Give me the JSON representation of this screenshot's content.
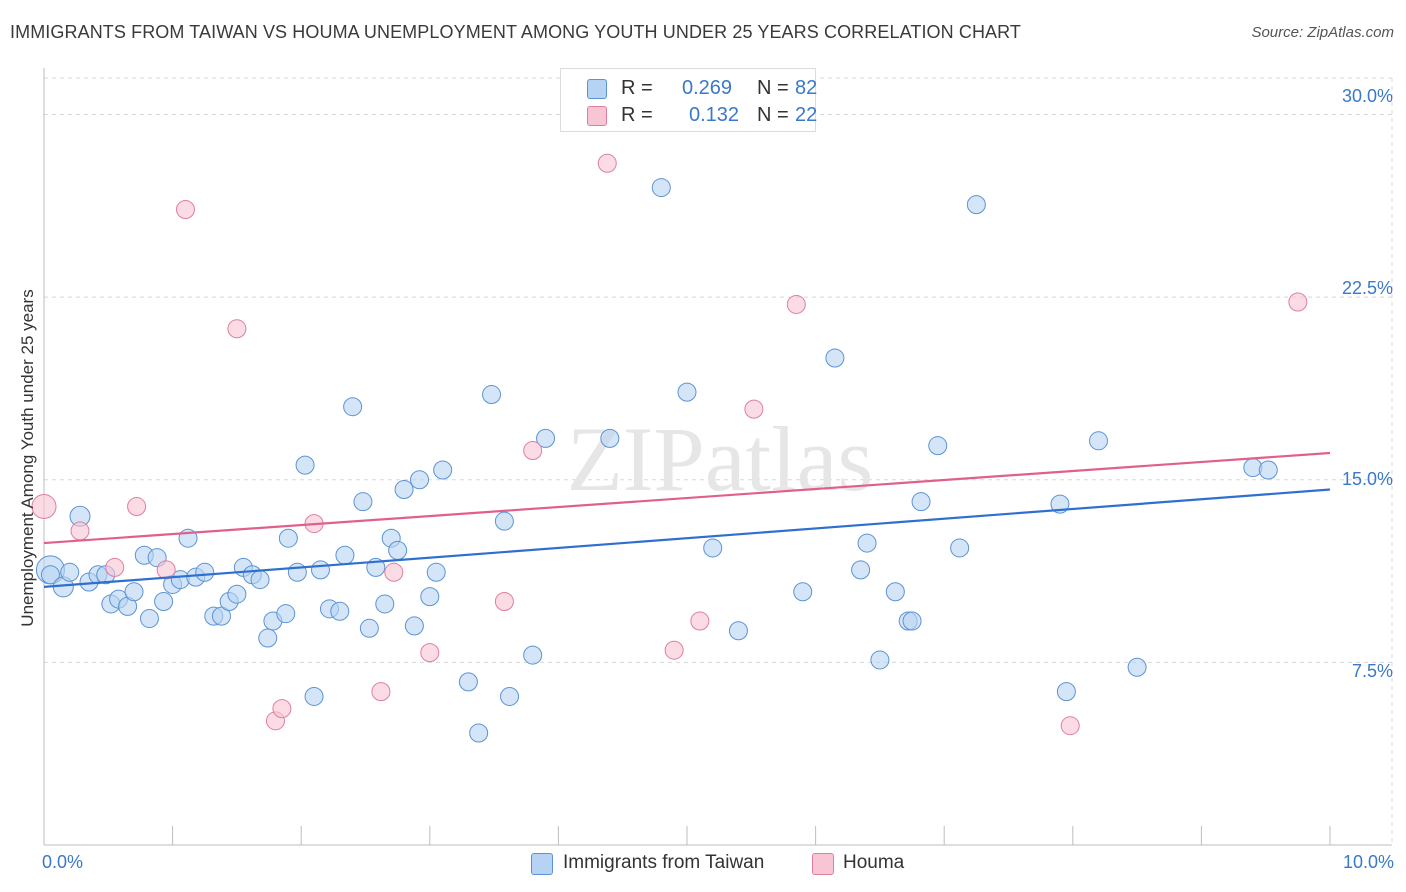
{
  "title": "IMMIGRANTS FROM TAIWAN VS HOUMA UNEMPLOYMENT AMONG YOUTH UNDER 25 YEARS CORRELATION CHART",
  "source": "Source: ZipAtlas.com",
  "watermark": "ZIPatlas",
  "colors": {
    "blue_fill": "#b7d3f3",
    "blue_stroke": "#5b93d6",
    "blue_line": "#2f6fcf",
    "pink_fill": "#f8c5d4",
    "pink_stroke": "#e07ea0",
    "pink_line": "#e0608c",
    "grid": "#d8d8d8",
    "tick_text": "#3a78c9"
  },
  "legend": {
    "row1": {
      "r_label": "R =",
      "r_value": "0.269",
      "n_label": "N =",
      "n_value": "82"
    },
    "row2": {
      "r_label": "R =",
      "r_value": "0.132",
      "n_label": "N =",
      "n_value": "22"
    }
  },
  "bottom_legend": {
    "series1": "Immigrants from Taiwan",
    "series2": "Houma"
  },
  "chart_data": {
    "type": "scatter",
    "title": "IMMIGRANTS FROM TAIWAN VS HOUMA UNEMPLOYMENT AMONG YOUTH UNDER 25 YEARS CORRELATION CHART",
    "xlabel": "",
    "ylabel": "Unemployment Among Youth under 25 years",
    "xlim": [
      0,
      10
    ],
    "ylim": [
      0,
      31.5
    ],
    "x_tick_labels": [
      "0.0%",
      "10.0%"
    ],
    "y_ticks": [
      {
        "value": 30,
        "label": "30.0%"
      },
      {
        "value": 22.5,
        "label": "22.5%"
      },
      {
        "value": 15,
        "label": "15.0%"
      },
      {
        "value": 7.5,
        "label": "7.5%"
      }
    ],
    "series": [
      {
        "name": "Immigrants from Taiwan",
        "color": "#5b93d6",
        "R": 0.269,
        "N": 82,
        "trend": {
          "x": [
            0,
            10
          ],
          "y": [
            10.6,
            14.6
          ]
        },
        "points": [
          [
            0.05,
            11.3,
            14
          ],
          [
            0.05,
            11.1,
            9
          ],
          [
            0.15,
            10.6,
            10
          ],
          [
            0.2,
            11.2,
            9
          ],
          [
            0.28,
            13.5,
            10
          ],
          [
            0.35,
            10.8,
            9
          ],
          [
            0.42,
            11.1,
            9
          ],
          [
            0.48,
            11.1,
            9
          ],
          [
            0.52,
            9.9,
            9
          ],
          [
            0.58,
            10.1,
            9
          ],
          [
            0.65,
            9.8,
            9
          ],
          [
            0.7,
            10.4,
            9
          ],
          [
            0.78,
            11.9,
            9
          ],
          [
            0.82,
            9.3,
            9
          ],
          [
            0.88,
            11.8,
            9
          ],
          [
            0.93,
            10.0,
            9
          ],
          [
            1.0,
            10.7,
            9
          ],
          [
            1.06,
            10.9,
            9
          ],
          [
            1.12,
            12.6,
            9
          ],
          [
            1.18,
            11.0,
            9
          ],
          [
            1.25,
            11.2,
            9
          ],
          [
            1.32,
            9.4,
            9
          ],
          [
            1.38,
            9.4,
            9
          ],
          [
            1.44,
            10.0,
            9
          ],
          [
            1.5,
            10.3,
            9
          ],
          [
            1.55,
            11.4,
            9
          ],
          [
            1.62,
            11.1,
            9
          ],
          [
            1.68,
            10.9,
            9
          ],
          [
            1.74,
            8.5,
            9
          ],
          [
            1.78,
            9.2,
            9
          ],
          [
            1.88,
            9.5,
            9
          ],
          [
            1.9,
            12.6,
            9
          ],
          [
            1.97,
            11.2,
            9
          ],
          [
            2.03,
            15.6,
            9
          ],
          [
            2.1,
            6.1,
            9
          ],
          [
            2.15,
            11.3,
            9
          ],
          [
            2.22,
            9.7,
            9
          ],
          [
            2.3,
            9.6,
            9
          ],
          [
            2.34,
            11.9,
            9
          ],
          [
            2.4,
            18.0,
            9
          ],
          [
            2.48,
            14.1,
            9
          ],
          [
            2.53,
            8.9,
            9
          ],
          [
            2.58,
            11.4,
            9
          ],
          [
            2.65,
            9.9,
            9
          ],
          [
            2.7,
            12.6,
            9
          ],
          [
            2.75,
            12.1,
            9
          ],
          [
            2.8,
            14.6,
            9
          ],
          [
            2.88,
            9.0,
            9
          ],
          [
            2.92,
            15.0,
            9
          ],
          [
            3.0,
            10.2,
            9
          ],
          [
            3.05,
            11.2,
            9
          ],
          [
            3.1,
            15.4,
            9
          ],
          [
            3.3,
            6.7,
            9
          ],
          [
            3.38,
            4.6,
            9
          ],
          [
            3.48,
            18.5,
            9
          ],
          [
            3.58,
            13.3,
            9
          ],
          [
            3.62,
            6.1,
            9
          ],
          [
            3.8,
            7.8,
            9
          ],
          [
            3.9,
            16.7,
            9
          ],
          [
            4.4,
            16.7,
            9
          ],
          [
            4.8,
            27.0,
            9
          ],
          [
            5.0,
            18.6,
            9
          ],
          [
            5.2,
            12.2,
            9
          ],
          [
            5.4,
            8.8,
            9
          ],
          [
            5.9,
            10.4,
            9
          ],
          [
            6.15,
            20.0,
            9
          ],
          [
            6.35,
            11.3,
            9
          ],
          [
            6.4,
            12.4,
            9
          ],
          [
            6.5,
            7.6,
            9
          ],
          [
            6.62,
            10.4,
            9
          ],
          [
            6.72,
            9.2,
            9
          ],
          [
            6.75,
            9.2,
            9
          ],
          [
            6.82,
            14.1,
            9
          ],
          [
            6.95,
            16.4,
            9
          ],
          [
            7.12,
            12.2,
            9
          ],
          [
            7.25,
            26.3,
            9
          ],
          [
            7.9,
            14.0,
            9
          ],
          [
            7.95,
            6.3,
            9
          ],
          [
            8.2,
            16.6,
            9
          ],
          [
            8.5,
            7.3,
            9
          ],
          [
            9.4,
            15.5,
            9
          ],
          [
            9.52,
            15.4,
            9
          ]
        ]
      },
      {
        "name": "Houma",
        "color": "#e07ea0",
        "R": 0.132,
        "N": 22,
        "trend": {
          "x": [
            0,
            10
          ],
          "y": [
            12.4,
            16.1
          ]
        },
        "points": [
          [
            0.0,
            13.9,
            12
          ],
          [
            0.28,
            12.9,
            9
          ],
          [
            0.55,
            11.4,
            9
          ],
          [
            0.72,
            13.9,
            9
          ],
          [
            0.95,
            11.3,
            9
          ],
          [
            1.1,
            26.1,
            9
          ],
          [
            1.5,
            21.2,
            9
          ],
          [
            1.8,
            5.1,
            9
          ],
          [
            1.85,
            5.6,
            9
          ],
          [
            2.1,
            13.2,
            9
          ],
          [
            2.62,
            6.3,
            9
          ],
          [
            2.72,
            11.2,
            9
          ],
          [
            3.0,
            7.9,
            9
          ],
          [
            3.58,
            10.0,
            9
          ],
          [
            3.8,
            16.2,
            9
          ],
          [
            4.38,
            28.0,
            9
          ],
          [
            4.9,
            8.0,
            9
          ],
          [
            5.1,
            9.2,
            9
          ],
          [
            5.52,
            17.9,
            9
          ],
          [
            5.85,
            22.2,
            9
          ],
          [
            7.98,
            4.9,
            9
          ],
          [
            9.75,
            22.3,
            9
          ]
        ]
      }
    ]
  }
}
